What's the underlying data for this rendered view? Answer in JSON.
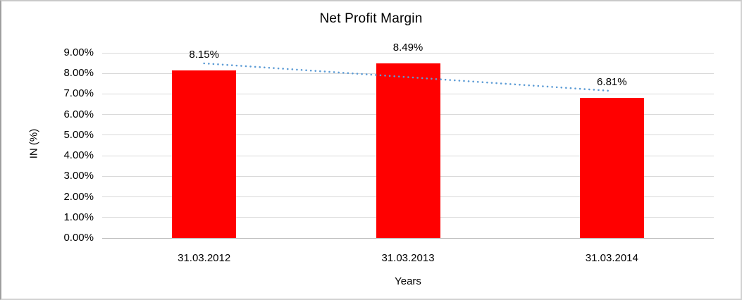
{
  "frame": {
    "background": "#ffffff",
    "border_color": "#c9c9c9"
  },
  "chart_data": {
    "type": "bar",
    "title": "Net Profit Margin",
    "xlabel": "Years",
    "ylabel": "IN (%)",
    "categories": [
      "31.03.2012",
      "31.03.2013",
      "31.03.2014"
    ],
    "values": [
      8.15,
      8.49,
      6.81
    ],
    "data_labels": [
      "8.15%",
      "8.49%",
      "6.81%"
    ],
    "ylim": [
      0,
      9
    ],
    "ytick_step": 1,
    "ytick_labels": [
      "0.00%",
      "1.00%",
      "2.00%",
      "3.00%",
      "4.00%",
      "5.00%",
      "6.00%",
      "7.00%",
      "8.00%",
      "9.00%"
    ],
    "grid": true,
    "legend_position": "none",
    "bar_color": "#ff0000",
    "gridline_color": "#d9d9d9",
    "axis_line_color": "#bfbfbf",
    "trendline": {
      "type": "linear",
      "style": "dotted",
      "color": "#5b9bd5"
    }
  }
}
